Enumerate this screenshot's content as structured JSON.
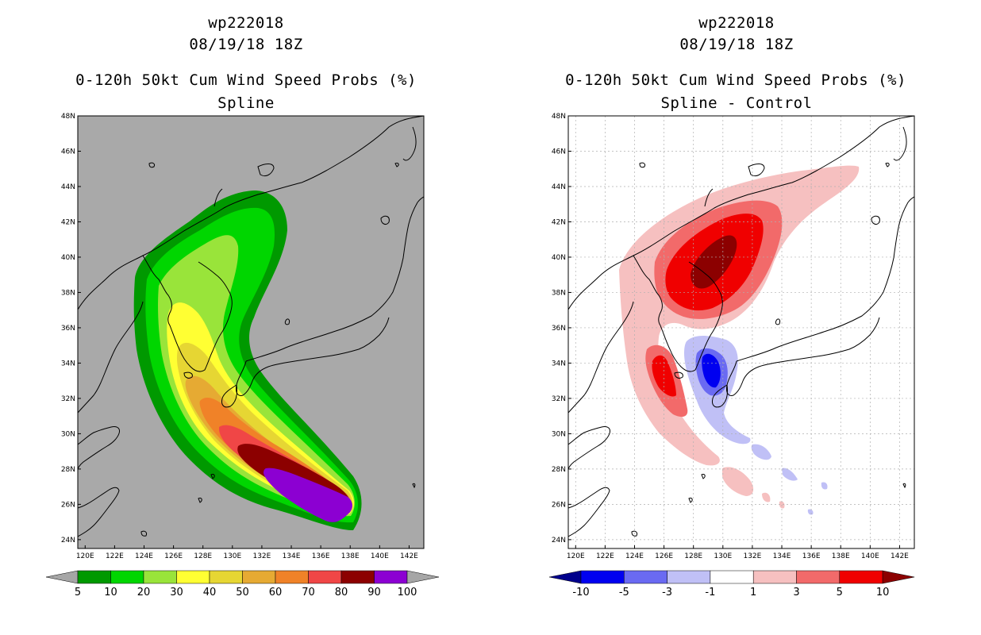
{
  "left_panel": {
    "storm_id": "wp222018",
    "datetime": "08/19/18 18Z",
    "product": "0-120h 50kt Cum Wind Speed Probs (%)",
    "subtitle": "Spline",
    "colorbar": {
      "labels": [
        "5",
        "10",
        "20",
        "30",
        "40",
        "50",
        "60",
        "70",
        "80",
        "90",
        "100"
      ],
      "colors": [
        "#009900",
        "#00d600",
        "#99e43a",
        "#ffff33",
        "#e6d633",
        "#e6aa33",
        "#f08228",
        "#f04646",
        "#8c0000",
        "#8c00d2"
      ],
      "under_color": "#a6a6a6",
      "over_color": "#a6a6a6"
    },
    "background_color": "#a9a9a9"
  },
  "right_panel": {
    "storm_id": "wp222018",
    "datetime": "08/19/18 18Z",
    "product": "0-120h 50kt Cum Wind Speed Probs (%)",
    "subtitle": "Spline - Control",
    "colorbar": {
      "labels": [
        "-10",
        "-5",
        "-3",
        "-1",
        "1",
        "3",
        "5",
        "10"
      ],
      "colors": [
        "#0000f0",
        "#6a6af2",
        "#c0c0f6",
        "#ffffff",
        "#f6c0c0",
        "#f26a6a",
        "#f00000"
      ],
      "under_color": "#00008c",
      "over_color": "#8c0000"
    },
    "background_color": "#ffffff"
  },
  "axes": {
    "lat_labels": [
      "48N",
      "46N",
      "44N",
      "42N",
      "40N",
      "38N",
      "36N",
      "34N",
      "32N",
      "30N",
      "28N",
      "26N",
      "24N"
    ],
    "lon_labels": [
      "120E",
      "122E",
      "124E",
      "126E",
      "128E",
      "130E",
      "132E",
      "134E",
      "136E",
      "138E",
      "140E",
      "142E"
    ],
    "lat_range": [
      23.5,
      48
    ],
    "lon_range": [
      119.5,
      143
    ]
  },
  "colors": {
    "coast": "#000000",
    "grid": "#b0b0b0"
  }
}
